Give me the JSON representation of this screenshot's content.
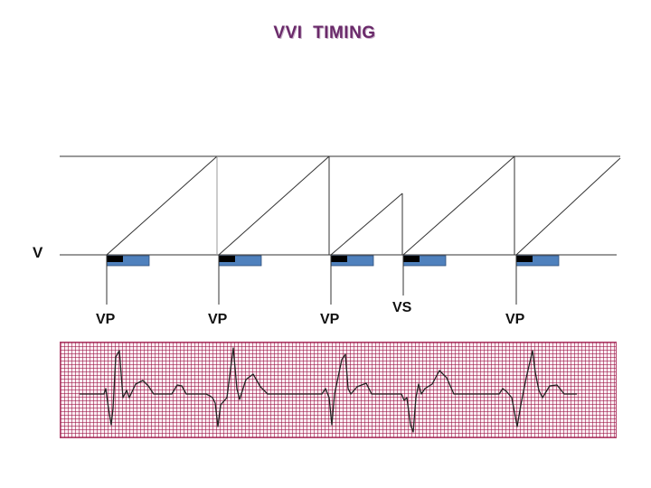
{
  "title": "VVI  TIMING",
  "channel_label": "V",
  "events": [
    {
      "label": "VP"
    },
    {
      "label": "VP"
    },
    {
      "label": "VP"
    },
    {
      "label": "VS"
    },
    {
      "label": "VP"
    }
  ],
  "colors": {
    "title": "#6a2a6a",
    "refractory_blank": "#000000",
    "refractory_period": "#4f81bd",
    "ecg_grid": "#960a3c",
    "ecg_background": "#fbeef3",
    "ecg_trace": "#222222"
  }
}
